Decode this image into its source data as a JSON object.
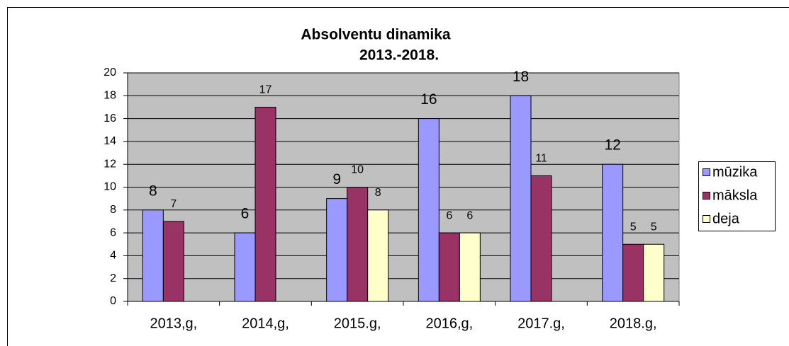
{
  "chart_data": {
    "type": "bar",
    "title": [
      "Absolventu dinamika",
      "2013.-2018."
    ],
    "categories": [
      "2013,g,",
      "2014,g,",
      "2015.g,",
      "2016,g,",
      "2017.g,",
      "2018.g,"
    ],
    "series": [
      {
        "name": "mūzika",
        "color": "#9999ff",
        "values": [
          8,
          6,
          9,
          16,
          18,
          12
        ]
      },
      {
        "name": "māksla",
        "color": "#993366",
        "values": [
          7,
          17,
          10,
          6,
          11,
          5
        ]
      },
      {
        "name": "deja",
        "color": "#ffffcc",
        "values": [
          null,
          null,
          8,
          6,
          null,
          5
        ]
      }
    ],
    "ylim": [
      0,
      20
    ],
    "yticks": [
      0,
      2,
      4,
      6,
      8,
      10,
      12,
      14,
      16,
      18,
      20
    ],
    "grid": true,
    "legend": "right"
  }
}
